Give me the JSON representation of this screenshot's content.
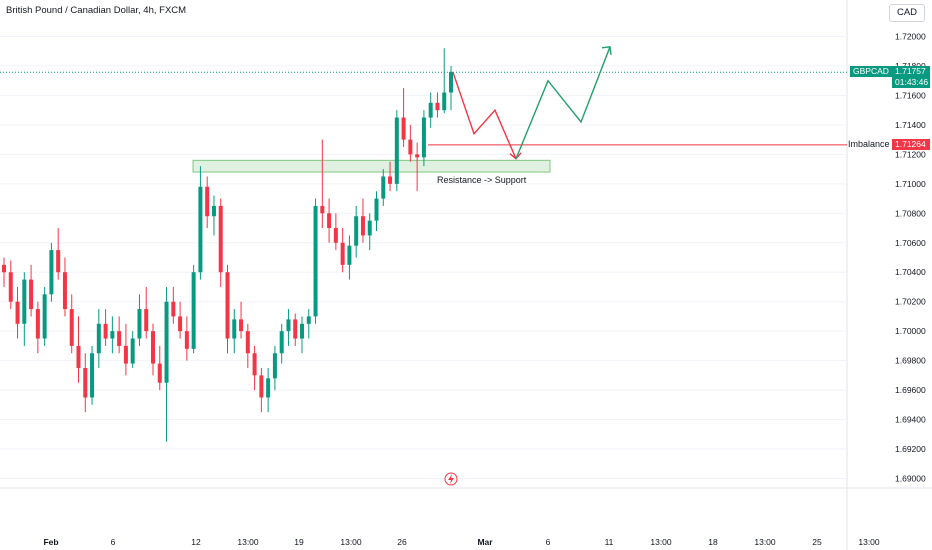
{
  "header": {
    "title": "British Pound / Canadian Dollar, 4h, FXCM",
    "currency_button": "CAD"
  },
  "colors": {
    "up": "#089981",
    "down": "#f23645",
    "grid": "#f0f3fa",
    "zone_fill": "#c8e6c9",
    "zone_stroke": "#66bb6a",
    "arrow_green": "#22a06b",
    "arrow_red": "#f23645"
  },
  "price_badges": [
    {
      "label": "GBPCAD",
      "value": "1.71757",
      "countdown": "01:43:46"
    },
    {
      "label": "Imbalance",
      "value": "1.71264"
    }
  ],
  "annotations": {
    "zone_label": "Resistance -> Support"
  },
  "chart_data": {
    "type": "candlestick",
    "title": "British Pound / Canadian Dollar, 4h, FXCM",
    "symbol": "GBPCAD",
    "ylim": [
      1.689,
      1.722
    ],
    "y_ticks": [
      "1.72000",
      "1.71800",
      "1.71600",
      "1.71400",
      "1.71200",
      "1.71000",
      "1.70800",
      "1.70600",
      "1.70400",
      "1.70200",
      "1.70000",
      "1.69800",
      "1.69600",
      "1.69400",
      "1.69200",
      "1.69000"
    ],
    "x_ticks": [
      "Feb",
      "6",
      "12",
      "13:00",
      "19",
      "13:00",
      "26",
      "Mar",
      "6",
      "11",
      "13:00",
      "18",
      "13:00",
      "25",
      "13:00"
    ],
    "last_price": 1.71757,
    "imbalance_level": 1.71264,
    "zone": [
      1.7108,
      1.7116
    ],
    "candles": [
      [
        1.7045,
        1.705,
        1.703,
        1.704
      ],
      [
        1.704,
        1.7048,
        1.7015,
        1.702
      ],
      [
        1.702,
        1.703,
        1.6995,
        1.7005
      ],
      [
        1.7005,
        1.704,
        1.699,
        1.7035
      ],
      [
        1.7035,
        1.7045,
        1.701,
        1.7015
      ],
      [
        1.7015,
        1.702,
        1.6985,
        1.6995
      ],
      [
        1.6995,
        1.703,
        1.699,
        1.7025
      ],
      [
        1.7025,
        1.706,
        1.702,
        1.7055
      ],
      [
        1.7055,
        1.707,
        1.7035,
        1.704
      ],
      [
        1.704,
        1.705,
        1.701,
        1.7015
      ],
      [
        1.7015,
        1.7025,
        1.6985,
        1.699
      ],
      [
        1.699,
        1.701,
        1.6965,
        1.6975
      ],
      [
        1.6975,
        1.6985,
        1.6945,
        1.6955
      ],
      [
        1.6955,
        1.699,
        1.695,
        1.6985
      ],
      [
        1.6985,
        1.7015,
        1.6975,
        1.7005
      ],
      [
        1.7005,
        1.7015,
        1.699,
        1.6995
      ],
      [
        1.6995,
        1.701,
        1.6985,
        1.7
      ],
      [
        1.7,
        1.701,
        1.6985,
        1.699
      ],
      [
        1.699,
        1.7005,
        1.697,
        1.6978
      ],
      [
        1.6978,
        1.7,
        1.6975,
        1.6995
      ],
      [
        1.6995,
        1.7025,
        1.699,
        1.7015
      ],
      [
        1.7015,
        1.703,
        1.6995,
        1.7
      ],
      [
        1.7,
        1.7005,
        1.697,
        1.6978
      ],
      [
        1.6978,
        1.699,
        1.696,
        1.6965
      ],
      [
        1.6965,
        1.703,
        1.6925,
        1.702
      ],
      [
        1.702,
        1.703,
        1.7005,
        1.701
      ],
      [
        1.701,
        1.702,
        1.6995,
        1.7
      ],
      [
        1.7,
        1.701,
        1.698,
        1.6988
      ],
      [
        1.6988,
        1.7045,
        1.6985,
        1.704
      ],
      [
        1.704,
        1.7112,
        1.7035,
        1.7098
      ],
      [
        1.7098,
        1.7105,
        1.707,
        1.7078
      ],
      [
        1.7078,
        1.7092,
        1.7065,
        1.7085
      ],
      [
        1.7085,
        1.709,
        1.703,
        1.704
      ],
      [
        1.704,
        1.7045,
        1.6985,
        1.6995
      ],
      [
        1.6995,
        1.7015,
        1.6985,
        1.7008
      ],
      [
        1.7008,
        1.702,
        1.6995,
        1.7
      ],
      [
        1.7,
        1.7005,
        1.6975,
        1.6985
      ],
      [
        1.6985,
        1.699,
        1.696,
        1.697
      ],
      [
        1.697,
        1.6975,
        1.6945,
        1.6955
      ],
      [
        1.6955,
        1.6975,
        1.6945,
        1.6968
      ],
      [
        1.6968,
        1.699,
        1.696,
        1.6985
      ],
      [
        1.6985,
        1.7005,
        1.6978,
        1.7
      ],
      [
        1.7,
        1.7015,
        1.699,
        1.7008
      ],
      [
        1.7008,
        1.7012,
        1.699,
        1.6995
      ],
      [
        1.6995,
        1.701,
        1.6985,
        1.7005
      ],
      [
        1.7005,
        1.7015,
        1.6995,
        1.701
      ],
      [
        1.701,
        1.709,
        1.7005,
        1.7085
      ],
      [
        1.7085,
        1.713,
        1.707,
        1.708
      ],
      [
        1.708,
        1.709,
        1.706,
        1.707
      ],
      [
        1.707,
        1.708,
        1.7055,
        1.706
      ],
      [
        1.706,
        1.707,
        1.704,
        1.7045
      ],
      [
        1.7045,
        1.7065,
        1.7035,
        1.7058
      ],
      [
        1.7058,
        1.7085,
        1.705,
        1.7078
      ],
      [
        1.7078,
        1.709,
        1.706,
        1.7065
      ],
      [
        1.7065,
        1.708,
        1.7055,
        1.7075
      ],
      [
        1.7075,
        1.7095,
        1.7068,
        1.709
      ],
      [
        1.709,
        1.711,
        1.7085,
        1.7105
      ],
      [
        1.7105,
        1.7115,
        1.7095,
        1.71
      ],
      [
        1.71,
        1.715,
        1.7095,
        1.7145
      ],
      [
        1.7145,
        1.7165,
        1.7125,
        1.713
      ],
      [
        1.713,
        1.714,
        1.7115,
        1.712
      ],
      [
        1.712,
        1.7128,
        1.7095,
        1.7118
      ],
      [
        1.7118,
        1.715,
        1.7112,
        1.7145
      ],
      [
        1.7145,
        1.7162,
        1.7138,
        1.7155
      ],
      [
        1.7155,
        1.7162,
        1.7145,
        1.715
      ],
      [
        1.715,
        1.7192,
        1.7148,
        1.7162
      ],
      [
        1.7162,
        1.718,
        1.715,
        1.7176
      ]
    ],
    "projection_red": [
      [
        1.71757
      ],
      [
        1.7134
      ],
      [
        1.715
      ],
      [
        1.7117
      ]
    ],
    "projection_green": [
      [
        1.7117
      ],
      [
        1.717
      ],
      [
        1.7142
      ],
      [
        1.7193
      ]
    ]
  }
}
